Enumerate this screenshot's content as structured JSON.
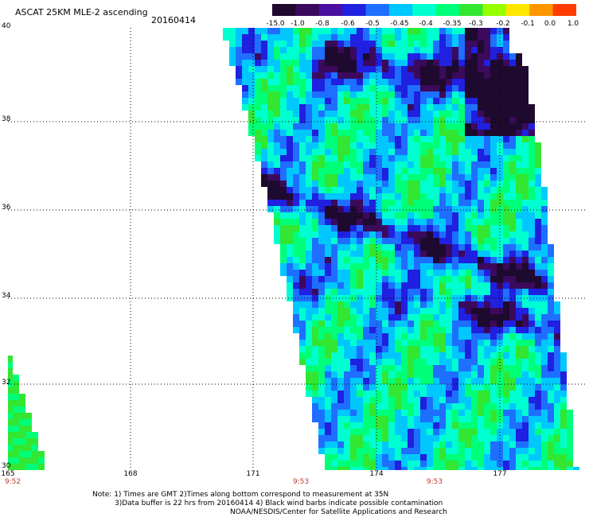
{
  "header": {
    "title": "ASCAT 25KM MLE-2 ascending",
    "date": "20160414"
  },
  "colorbar": {
    "labels": [
      "-15.0",
      "-1.0",
      "-0.8",
      "-0.6",
      "-0.5",
      "-0.45",
      "-0.4",
      "-0.35",
      "-0.3",
      "-0.2",
      "-0.1",
      "0.0",
      "1.0"
    ],
    "colors": [
      "#1e0a2e",
      "#3b0a5c",
      "#4a0fa0",
      "#2020e0",
      "#1e6fff",
      "#00c8ff",
      "#00ffd0",
      "#00ff78",
      "#32e632",
      "#96ff00",
      "#ffe600",
      "#ff9600",
      "#ff3c00"
    ]
  },
  "map": {
    "y_ticks": [
      "40",
      "38",
      "36",
      "34",
      "32",
      "30"
    ],
    "x_ticks": [
      "165",
      "168",
      "171",
      "174",
      "177"
    ],
    "times": [
      "9:52",
      "9:53",
      "9:53"
    ]
  },
  "notes": {
    "line1": "Note: 1) Times are GMT 2)Times along bottom correspond to measurement at 35N",
    "line2": "3)Data buffer is 22 hrs from 20160414 4) Black wind barbs indicate possible contamination",
    "line3": "NOAA/NESDIS/Center for Satellite Applications and Research"
  }
}
